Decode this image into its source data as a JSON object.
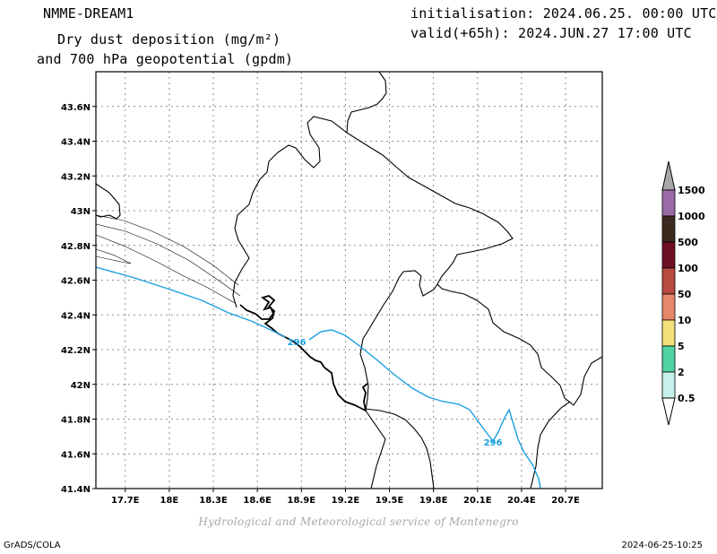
{
  "header": {
    "model": "NMME-DREAM1",
    "title_line1": "Dry dust deposition (mg/m²)",
    "title_line2": "and 700 hPa geopotential (gpdm)",
    "init": "initialisation: 2024.06.25. 00:00 UTC",
    "valid": "valid(+65h): 2024.JUN.27 17:00 UTC"
  },
  "map": {
    "lon_range": [
      17.5,
      20.95
    ],
    "lat_range": [
      41.4,
      43.8
    ],
    "lon_ticks": [
      "17.7E",
      "18E",
      "18.3E",
      "18.6E",
      "18.9E",
      "19.2E",
      "19.5E",
      "19.8E",
      "20.1E",
      "20.4E",
      "20.7E"
    ],
    "lat_ticks": [
      "43.6N",
      "43.4N",
      "43.2N",
      "43N",
      "42.8N",
      "42.6N",
      "42.4N",
      "42.2N",
      "42N",
      "41.8N",
      "41.6N",
      "41.4N"
    ],
    "grid": true,
    "contour_color": "#1a9fe0",
    "contour_labels": [
      "296",
      "296"
    ]
  },
  "legend": {
    "levels": [
      {
        "label": "1500",
        "color": "#9a6aa6"
      },
      {
        "label": "1000",
        "color": "#3c2a1e"
      },
      {
        "label": "500",
        "color": "#6e0f24"
      },
      {
        "label": "100",
        "color": "#b84a40"
      },
      {
        "label": "50",
        "color": "#e8866a"
      },
      {
        "label": "10",
        "color": "#f4e07a"
      },
      {
        "label": "5",
        "color": "#4fd3a3"
      },
      {
        "label": "2",
        "color": "#c6f0ea"
      },
      {
        "label": "0.5",
        "color": "#ffffff"
      }
    ],
    "top_arrow_color": "#a8a8a8"
  },
  "footer": {
    "credit": "Hydrological and Meteorological service of Montenegro",
    "left": "GrADS/COLA",
    "right": "2024-06-25-10:25"
  }
}
